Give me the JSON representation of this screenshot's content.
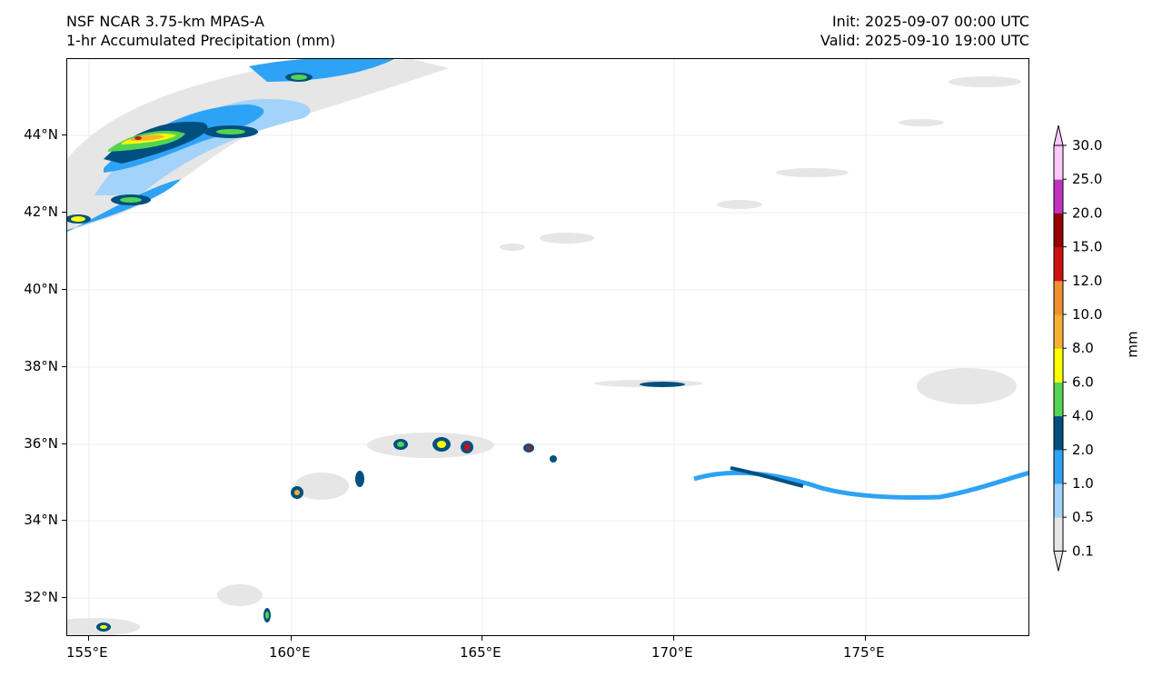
{
  "title_left": {
    "line1": "NSF NCAR 3.75-km MPAS-A",
    "line2": "1-hr Accumulated Precipitation (mm)"
  },
  "title_right": {
    "line1": "Init: 2025-09-07 00:00 UTC",
    "line2": "Valid: 2025-09-10 19:00 UTC"
  },
  "lat_ticks": [
    "44°N",
    "42°N",
    "40°N",
    "38°N",
    "36°N",
    "34°N",
    "32°N"
  ],
  "lon_ticks": [
    "155°E",
    "160°E",
    "165°E",
    "170°E",
    "175°E"
  ],
  "colorbar": {
    "label": "mm",
    "levels": [
      "0.1",
      "0.5",
      "1.0",
      "2.0",
      "4.0",
      "6.0",
      "8.0",
      "10.0",
      "12.0",
      "15.0",
      "20.0",
      "25.0",
      "30.0"
    ],
    "colors": [
      "#e6e6e6",
      "#a3d3fa",
      "#2ea3f5",
      "#00507f",
      "#52d452",
      "#ffff00",
      "#f7b034",
      "#ee9030",
      "#d01010",
      "#990000",
      "#c033c0",
      "#ffc8ff"
    ]
  }
}
